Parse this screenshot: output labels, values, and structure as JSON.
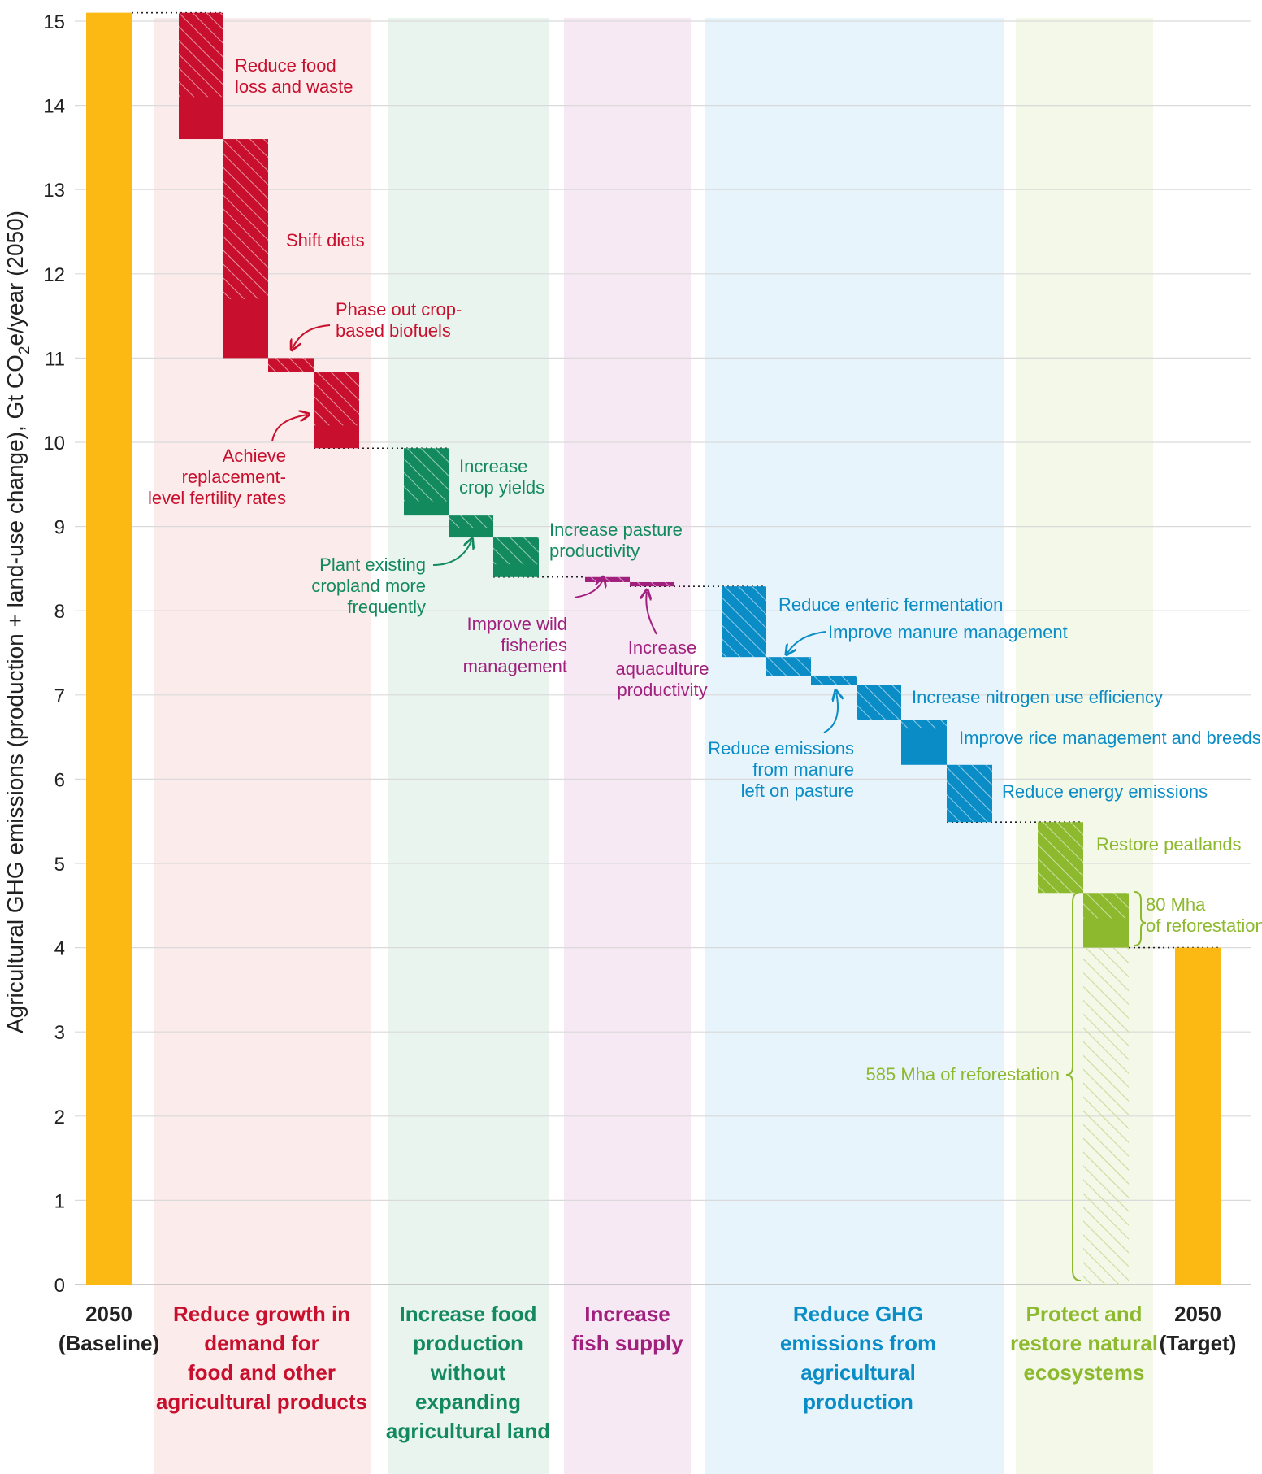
{
  "chart_data": {
    "type": "bar",
    "subtype": "waterfall",
    "title": "",
    "xlabel": "",
    "ylabel_parts": {
      "before": "Agricultural GHG emissions (production + land-use change), Gt CO",
      "sub": "2",
      "after": "e/year (2050)"
    },
    "ylim": [
      0,
      15
    ],
    "yticks": [
      "0",
      "1",
      "2",
      "3",
      "4",
      "5",
      "6",
      "7",
      "8",
      "9",
      "10",
      "11",
      "12",
      "13",
      "14",
      "15"
    ],
    "colors": {
      "baseline": "#FDB913",
      "demand": "#C8102E",
      "food": "#138A5E",
      "fish": "#A1207E",
      "ghg": "#0A8CC6",
      "eco": "#8DB92E"
    },
    "groups": [
      {
        "key": "baseline",
        "lines": [
          "2050",
          "(Baseline)"
        ],
        "text_color": "#222222"
      },
      {
        "key": "demand",
        "lines": [
          "Reduce growth in",
          "demand for",
          "food and other",
          "agricultural products"
        ],
        "text_color": "#C8102E"
      },
      {
        "key": "food",
        "lines": [
          "Increase food",
          "production",
          "without",
          "expanding",
          "agricultural land"
        ],
        "text_color": "#138A5E"
      },
      {
        "key": "fish",
        "lines": [
          "Increase",
          "fish supply"
        ],
        "text_color": "#A1207E"
      },
      {
        "key": "ghg",
        "lines": [
          "Reduce GHG",
          "emissions from",
          "agricultural",
          "production"
        ],
        "text_color": "#0A8CC6"
      },
      {
        "key": "eco",
        "lines": [
          "Protect and",
          "restore natural",
          "ecosystems"
        ],
        "text_color": "#8DB92E"
      },
      {
        "key": "target",
        "lines": [
          "2050",
          "(Target)"
        ],
        "text_color": "#222222"
      }
    ],
    "totals": [
      {
        "name": "2050 (Baseline)",
        "value": 15.1
      },
      {
        "name": "2050 (Target)",
        "value": 4.0
      }
    ],
    "steps": [
      {
        "name": "Reduce food loss and waste",
        "group": "demand",
        "top": 15.1,
        "bottom": 13.6,
        "hatch_to": 14.1,
        "label_lines": [
          "Reduce food",
          "loss and waste"
        ]
      },
      {
        "name": "Shift diets",
        "group": "demand",
        "top": 13.6,
        "bottom": 11.0,
        "hatch_to": 11.7,
        "label_lines": [
          "Shift diets"
        ]
      },
      {
        "name": "Phase out crop-based biofuels",
        "group": "demand",
        "top": 11.0,
        "bottom": 10.83,
        "hatch_to": 10.83,
        "label_lines": [
          "Phase out crop-",
          "based biofuels"
        ]
      },
      {
        "name": "Achieve replacement-level fertility rates",
        "group": "demand",
        "top": 10.83,
        "bottom": 9.93,
        "hatch_to": 10.2,
        "label_lines": [
          "Achieve",
          "replacement-",
          "level fertility rates"
        ]
      },
      {
        "name": "Increase crop yields",
        "group": "food",
        "top": 9.93,
        "bottom": 9.13,
        "hatch_to": 9.3,
        "label_lines": [
          "Increase",
          "crop yields"
        ]
      },
      {
        "name": "Plant existing cropland more frequently",
        "group": "food",
        "top": 9.13,
        "bottom": 8.87,
        "hatch_to": 8.98,
        "label_lines": [
          "Plant existing",
          "cropland more",
          "frequently"
        ]
      },
      {
        "name": "Increase pasture productivity",
        "group": "food",
        "top": 8.87,
        "bottom": 8.4,
        "hatch_to": 8.55,
        "label_lines": [
          "Increase pasture",
          "productivity"
        ]
      },
      {
        "name": "Improve wild fisheries management",
        "group": "fish",
        "top": 8.4,
        "bottom": 8.34,
        "hatch_to": 8.34,
        "label_lines": [
          "Improve wild",
          "fisheries",
          "management"
        ]
      },
      {
        "name": "Increase aquaculture productivity",
        "group": "fish",
        "top": 8.34,
        "bottom": 8.29,
        "hatch_to": 8.29,
        "label_lines": [
          "Increase",
          "aquaculture",
          "productivity"
        ]
      },
      {
        "name": "Reduce enteric fermentation",
        "group": "ghg",
        "top": 8.29,
        "bottom": 7.45,
        "hatch_to": 7.45,
        "label_lines": [
          "Reduce enteric fermentation"
        ]
      },
      {
        "name": "Improve manure management",
        "group": "ghg",
        "top": 7.45,
        "bottom": 7.23,
        "hatch_to": 7.23,
        "label_lines": [
          "Improve manure management"
        ]
      },
      {
        "name": "Reduce emissions from manure left on pasture",
        "group": "ghg",
        "top": 7.23,
        "bottom": 7.12,
        "hatch_to": 7.12,
        "label_lines": [
          "Reduce emissions",
          "from manure",
          "left on pasture"
        ]
      },
      {
        "name": "Increase nitrogen use efficiency",
        "group": "ghg",
        "top": 7.12,
        "bottom": 6.7,
        "hatch_to": 6.7,
        "label_lines": [
          "Increase nitrogen use efficiency"
        ]
      },
      {
        "name": "Improve rice management and breeds",
        "group": "ghg",
        "top": 6.7,
        "bottom": 6.17,
        "hatch_to": 6.6,
        "label_lines": [
          "Improve rice management and breeds"
        ]
      },
      {
        "name": "Reduce energy emissions",
        "group": "ghg",
        "top": 6.17,
        "bottom": 5.49,
        "hatch_to": 5.49,
        "label_lines": [
          "Reduce energy emissions"
        ]
      },
      {
        "name": "Restore peatlands",
        "group": "eco",
        "top": 5.49,
        "bottom": 4.65,
        "hatch_to": 4.65,
        "label_lines": [
          "Restore peatlands"
        ]
      },
      {
        "name": "80 Mha of reforestation",
        "group": "eco",
        "top": 4.65,
        "bottom": 4.0,
        "hatch_to": 4.35,
        "label_lines": [
          "80 Mha",
          "of reforestation"
        ]
      }
    ],
    "extra": {
      "name": "585 Mha of reforestation",
      "group": "eco",
      "top": 4.0,
      "bottom": 0,
      "label": "585 Mha of reforestation"
    }
  }
}
